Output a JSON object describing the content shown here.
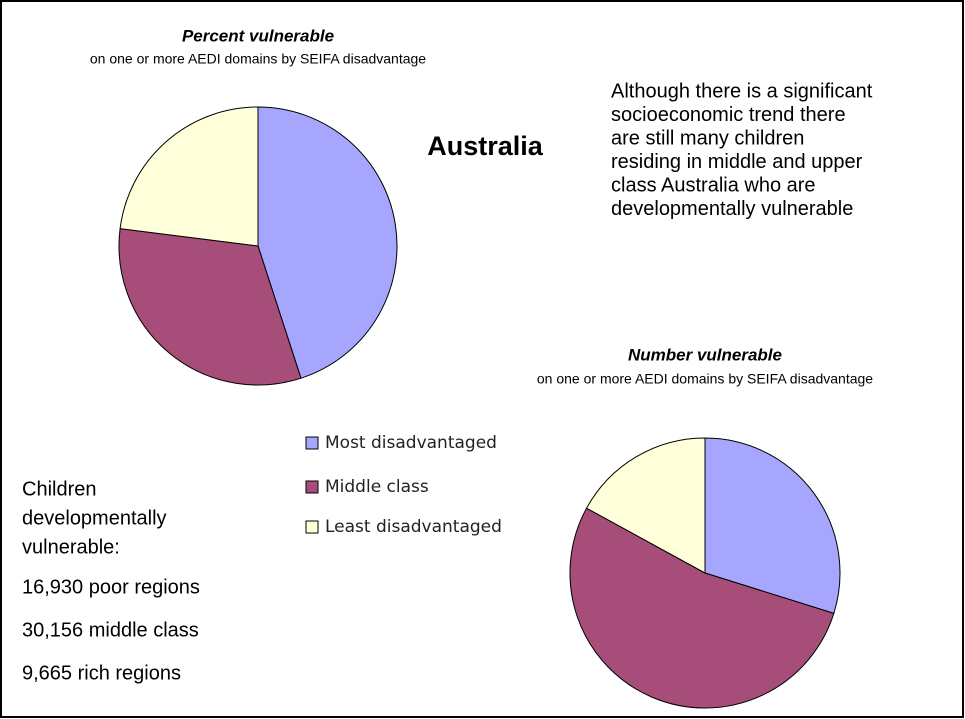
{
  "chart_data": [
    {
      "type": "pie",
      "title": "Percent vulnerable",
      "subtitle": "on one or more AEDI domains by SEIFA disadvantage",
      "categories": [
        "Most disadvantaged",
        "Middle class",
        "Least disadvantaged"
      ],
      "values": [
        45,
        32,
        23
      ],
      "colors": [
        "#a6a6ff",
        "#a64d79",
        "#ffffd9"
      ]
    },
    {
      "type": "pie",
      "title": "Number vulnerable",
      "subtitle": "on one or more AEDI domains by SEIFA disadvantage",
      "values": [
        16930,
        30156,
        9665
      ],
      "colors": [
        "#a6a6ff",
        "#a64d79",
        "#ffffd9"
      ]
    }
  ],
  "heading": "Australia",
  "note_lines": [
    "Although there is a significant",
    "socioeconomic trend there",
    "are still many children",
    "residing in middle and upper",
    "class Australia who are",
    "developmentally vulnerable"
  ],
  "side_lines": [
    "Children",
    "developmentally",
    "vulnerable:"
  ],
  "counts": [
    "16,930 poor regions",
    "30,156 middle class",
    "9,665 rich regions"
  ]
}
